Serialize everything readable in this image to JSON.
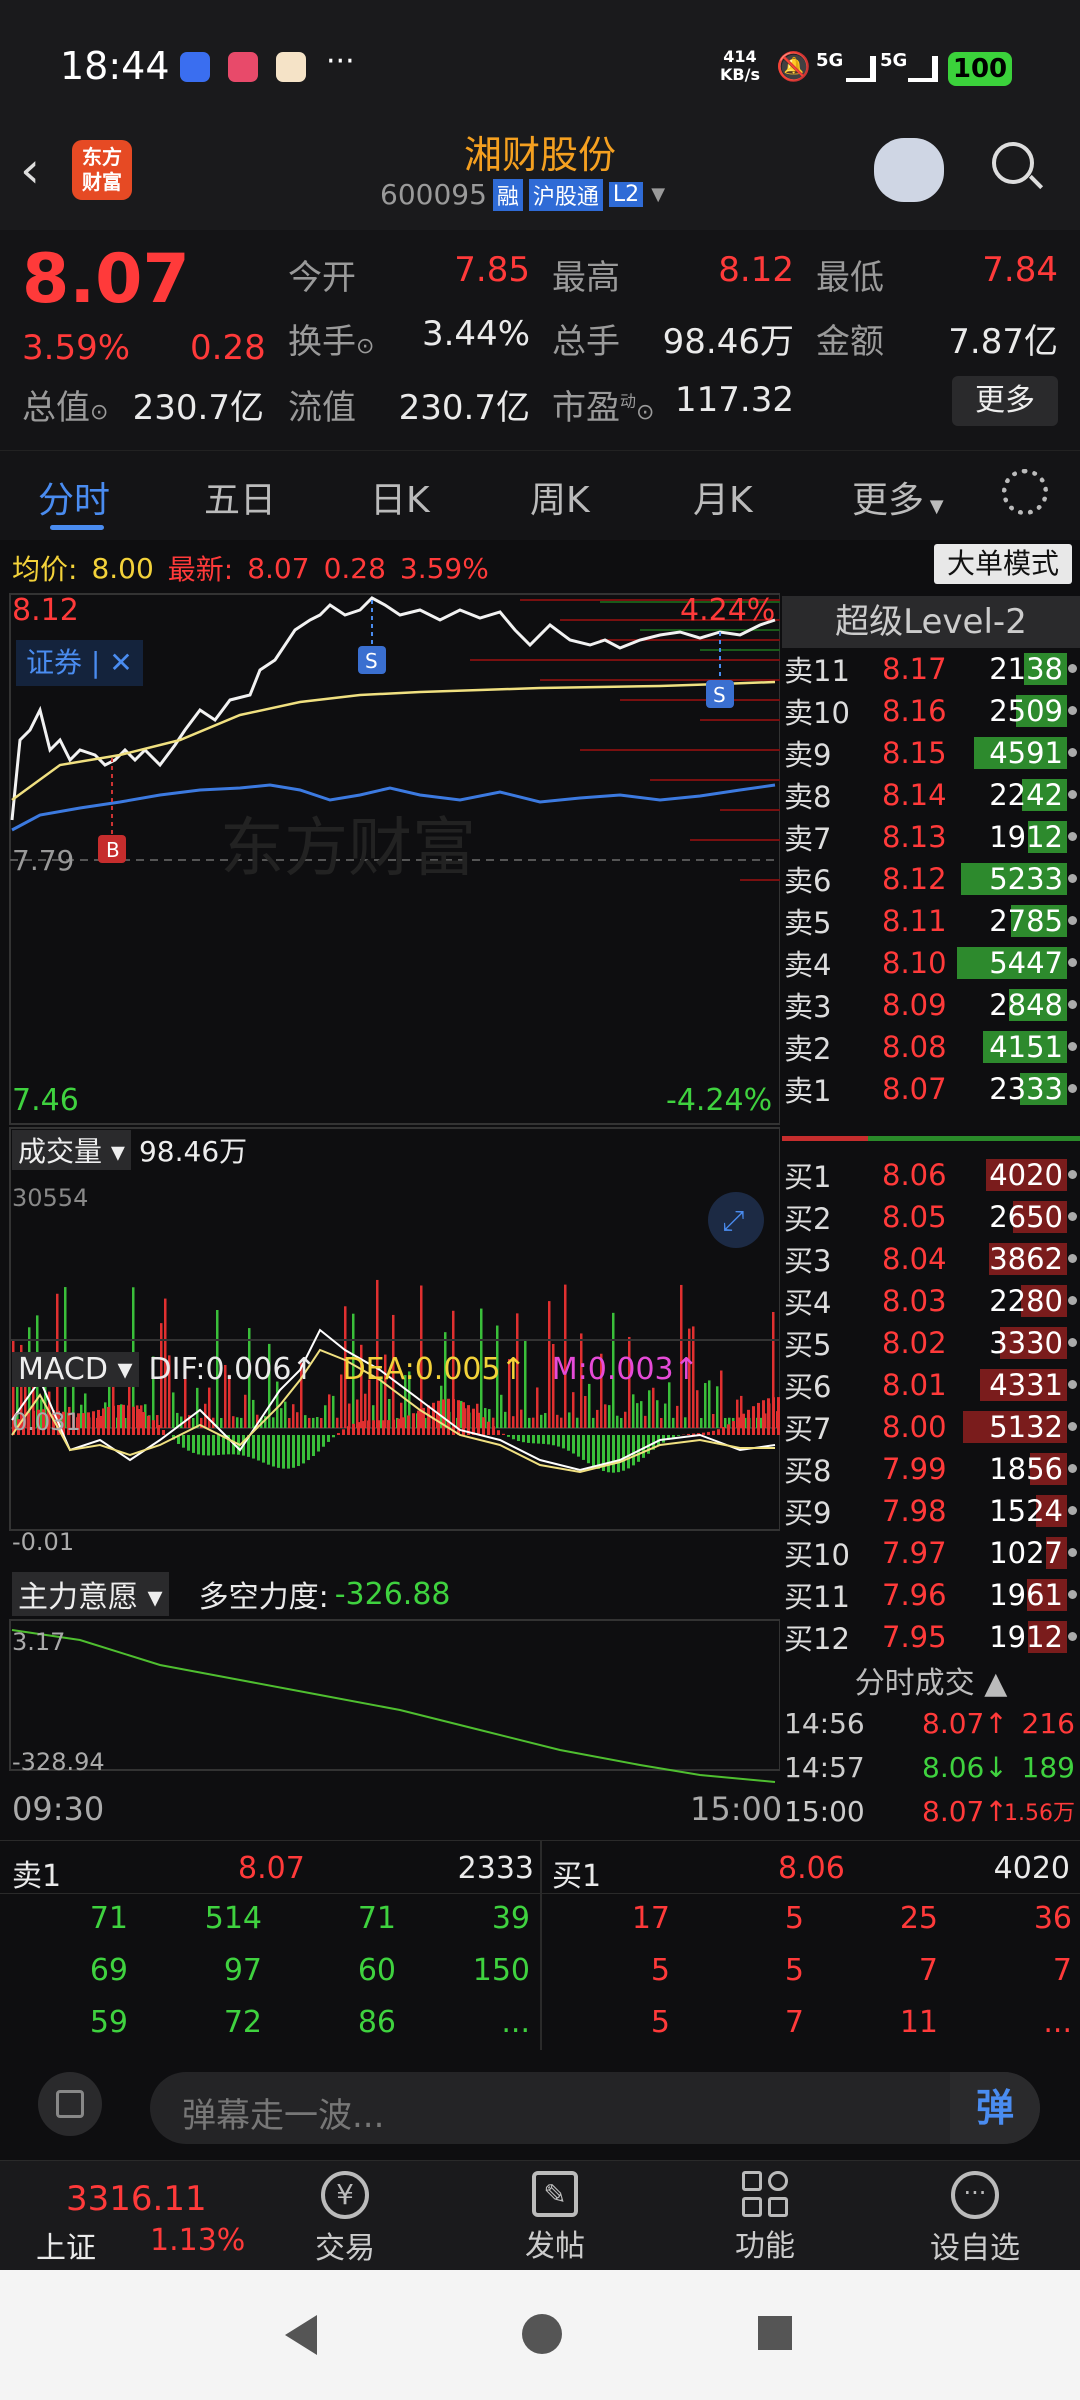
{
  "status": {
    "time": "18:44",
    "net_speed": "414\nKB/s",
    "net_top": "414",
    "net_bot": "KB/s",
    "signal1": "5G",
    "signal2": "5G",
    "battery": "100"
  },
  "header": {
    "name": "湘财股份",
    "code": "600095",
    "badge1": "融",
    "badge2": "沪股通",
    "badge3": "L2",
    "logo": "东方\n财富",
    "logo_line1": "东方",
    "logo_line2": "财富"
  },
  "quote": {
    "price": "8.07",
    "pct": "3.59%",
    "change": "0.28",
    "open_label": "今开",
    "open": "7.85",
    "high_label": "最高",
    "high": "8.12",
    "low_label": "最低",
    "low": "7.84",
    "turnover_label": "换手",
    "turnover": "3.44%",
    "vol_label": "总手",
    "vol": "98.46万",
    "amount_label": "金额",
    "amount": "7.87亿",
    "mktcap_label": "总值",
    "mktcap": "230.7亿",
    "float_label": "流值",
    "float": "230.7亿",
    "pe_label": "市盈",
    "pe_sup": "动",
    "pe": "117.32",
    "more": "更多"
  },
  "tabs": [
    "分时",
    "五日",
    "日K",
    "周K",
    "月K",
    "更多"
  ],
  "avgline": {
    "avg_label": "均价:",
    "avg": "8.00",
    "latest_label": "最新:",
    "latest": "8.07",
    "chg": "0.28",
    "pct": "3.59%",
    "mode_btn": "大单模式"
  },
  "chart": {
    "ymax": "8.12",
    "ymin": "7.46",
    "pmax": "4.24%",
    "pmin": "-4.24%",
    "mid": "7.79",
    "zq": "证券",
    "watermark": "东方财富",
    "marker_b": "B",
    "marker_s": "S",
    "vol_label": "成交量",
    "vol_val": "98.46万",
    "vol_max": "30554",
    "macd_label": "MACD",
    "dif": "DIF:0.006↑",
    "dea": "DEA:0.005↑",
    "m": "M:0.003↑",
    "macd_top": "0.031",
    "macd_bot": "-0.01",
    "main_label": "主力意愿",
    "force_label": "多空力度:",
    "force_val": "-326.88",
    "main_top": "3.17",
    "main_bot": "-328.94",
    "t_start": "09:30",
    "t_end": "15:00"
  },
  "level2": "超级Level-2",
  "sells": [
    {
      "label": "卖11",
      "price": "8.17",
      "vol": "2138"
    },
    {
      "label": "卖10",
      "price": "8.16",
      "vol": "2509"
    },
    {
      "label": "卖9",
      "price": "8.15",
      "vol": "4591"
    },
    {
      "label": "卖8",
      "price": "8.14",
      "vol": "2242"
    },
    {
      "label": "卖7",
      "price": "8.13",
      "vol": "1912"
    },
    {
      "label": "卖6",
      "price": "8.12",
      "vol": "5233"
    },
    {
      "label": "卖5",
      "price": "8.11",
      "vol": "2785"
    },
    {
      "label": "卖4",
      "price": "8.10",
      "vol": "5447"
    },
    {
      "label": "卖3",
      "price": "8.09",
      "vol": "2848"
    },
    {
      "label": "卖2",
      "price": "8.08",
      "vol": "4151"
    },
    {
      "label": "卖1",
      "price": "8.07",
      "vol": "2333"
    }
  ],
  "buys": [
    {
      "label": "买1",
      "price": "8.06",
      "vol": "4020"
    },
    {
      "label": "买2",
      "price": "8.05",
      "vol": "2650"
    },
    {
      "label": "买3",
      "price": "8.04",
      "vol": "3862"
    },
    {
      "label": "买4",
      "price": "8.03",
      "vol": "2280"
    },
    {
      "label": "买5",
      "price": "8.02",
      "vol": "3330"
    },
    {
      "label": "买6",
      "price": "8.01",
      "vol": "4331"
    },
    {
      "label": "买7",
      "price": "8.00",
      "vol": "5132"
    },
    {
      "label": "买8",
      "price": "7.99",
      "vol": "1856"
    },
    {
      "label": "买9",
      "price": "7.98",
      "vol": "1524"
    },
    {
      "label": "买10",
      "price": "7.97",
      "vol": "1027"
    },
    {
      "label": "买11",
      "price": "7.96",
      "vol": "1961"
    },
    {
      "label": "买12",
      "price": "7.95",
      "vol": "1912"
    }
  ],
  "ticks_title": "分时成交",
  "ticks": [
    {
      "time": "14:56",
      "price": "8.07↑",
      "vol": "216"
    },
    {
      "time": "14:57",
      "price": "8.06↓",
      "vol": "189"
    },
    {
      "time": "15:00",
      "price": "8.07↑",
      "vol": "1.56万"
    }
  ],
  "queue": {
    "sell_label": "卖1",
    "sell_price": "8.07",
    "sell_vol": "2333",
    "buy_label": "买1",
    "buy_price": "8.06",
    "buy_vol": "4020",
    "sell_rows": [
      [
        "71",
        "514",
        "71",
        "39"
      ],
      [
        "69",
        "97",
        "60",
        "150"
      ],
      [
        "59",
        "72",
        "86",
        "..."
      ]
    ],
    "buy_rows": [
      [
        "17",
        "5",
        "25",
        "36"
      ],
      [
        "5",
        "5",
        "7",
        "7"
      ],
      [
        "5",
        "7",
        "11",
        "..."
      ]
    ]
  },
  "comment": {
    "placeholder": "弹幕走一波...",
    "btn": "弹"
  },
  "bottom": {
    "index_val": "3316.11",
    "index_name": "上证",
    "index_pct": "1.13%",
    "items": [
      "交易",
      "发帖",
      "功能",
      "设自选"
    ]
  }
}
